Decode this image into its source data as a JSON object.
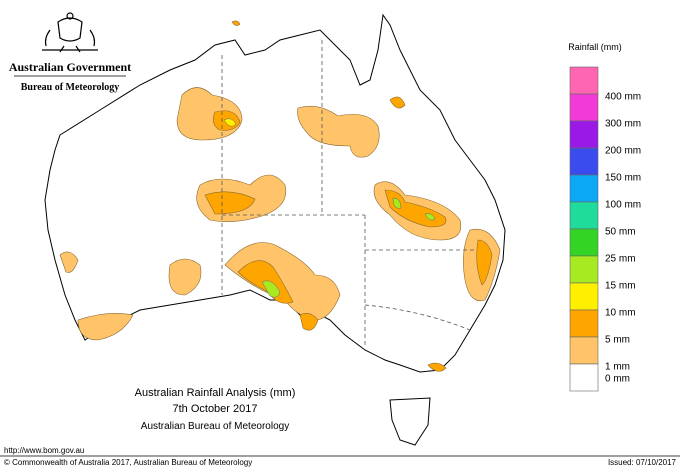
{
  "header": {
    "agency": "Australian Government",
    "bureau": "Bureau of Meteorology"
  },
  "legend": {
    "title": "Rainfall (mm)",
    "items": [
      {
        "label": null,
        "color": "#ff66b2"
      },
      {
        "label": "400 mm",
        "color": "#f23ad6"
      },
      {
        "label": "300 mm",
        "color": "#9a19e6"
      },
      {
        "label": "200 mm",
        "color": "#3b4cef"
      },
      {
        "label": "150 mm",
        "color": "#0aa8f5"
      },
      {
        "label": "100 mm",
        "color": "#1fdc9a"
      },
      {
        "label": "50 mm",
        "color": "#33d424"
      },
      {
        "label": "25 mm",
        "color": "#a8ea22"
      },
      {
        "label": "15 mm",
        "color": "#fff000"
      },
      {
        "label": "10 mm",
        "color": "#ffa500"
      },
      {
        "label": "5 mm",
        "color": "#ffc46a"
      },
      {
        "label": "1 mm",
        "color": "#ffffff"
      }
    ]
  },
  "map_title": {
    "line1": "Australian Rainfall Analysis (mm)",
    "line2": "7th October 2017",
    "line3": "Australian Bureau of Meteorology"
  },
  "footer": {
    "url": "http://www.bom.gov.au",
    "copyright": "© Commonwealth of Australia 2017, Australian Bureau of Meteorology",
    "issued": "Issued: 07/10/2017"
  },
  "zero_label": "0 mm"
}
